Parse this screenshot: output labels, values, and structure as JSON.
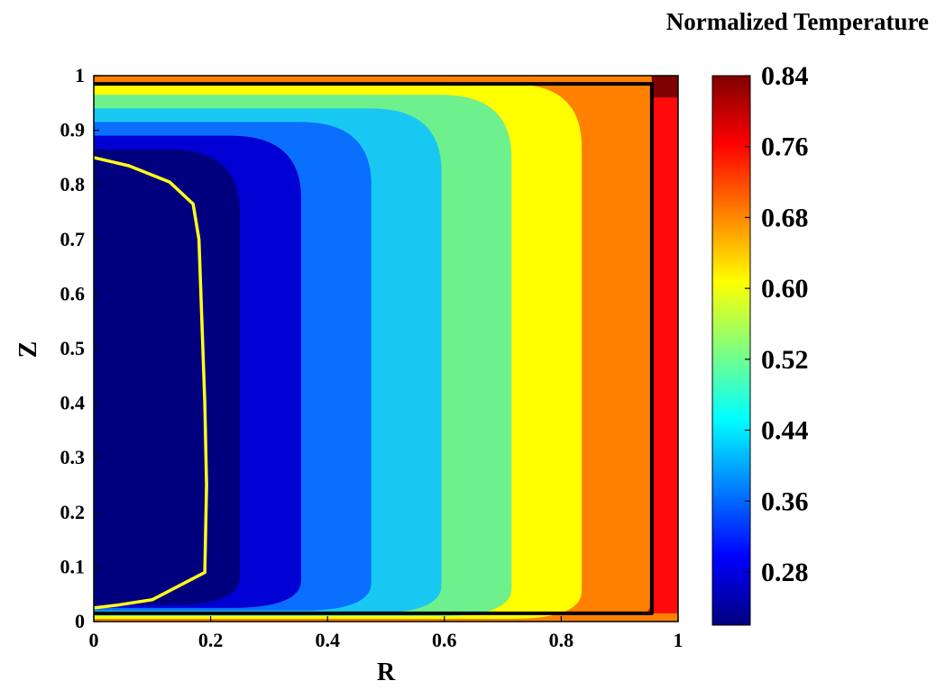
{
  "chart_data": {
    "type": "heatmap",
    "subtype": "filled-contour",
    "title": "",
    "xlabel": "R",
    "ylabel": "Z",
    "xlim": [
      0,
      1
    ],
    "ylim": [
      0,
      1
    ],
    "x_ticks": [
      "0",
      "0.2",
      "0.4",
      "0.6",
      "0.8",
      "1"
    ],
    "x_tick_values": [
      0,
      0.2,
      0.4,
      0.6,
      0.8,
      1
    ],
    "y_ticks": [
      "0",
      "0.1",
      "0.2",
      "0.3",
      "0.4",
      "0.5",
      "0.6",
      "0.7",
      "0.8",
      "0.9",
      "1"
    ],
    "y_tick_values": [
      0,
      0.1,
      0.2,
      0.3,
      0.4,
      0.5,
      0.6,
      0.7,
      0.8,
      0.9,
      1
    ],
    "grid": false,
    "colorbar": {
      "title": "Normalized Temperature",
      "min": 0.22,
      "max": 0.84,
      "tick_labels": [
        "0.84",
        "0.76",
        "0.68",
        "0.60",
        "0.52",
        "0.44",
        "0.36",
        "0.28"
      ],
      "tick_values": [
        0.84,
        0.76,
        0.68,
        0.6,
        0.52,
        0.44,
        0.36,
        0.28
      ],
      "colormap": [
        "#00007f",
        "#0000ff",
        "#0080ff",
        "#00ffff",
        "#80ff80",
        "#ffff00",
        "#ff8000",
        "#ff0000",
        "#7f0000"
      ]
    },
    "levels": [
      {
        "r_mid": 0.25,
        "z_low": 0.03,
        "z_high": 0.865,
        "color": "#00007f"
      },
      {
        "r_mid": 0.355,
        "z_low": 0.025,
        "z_high": 0.89,
        "color": "#0000d4"
      },
      {
        "r_mid": 0.475,
        "z_low": 0.02,
        "z_high": 0.915,
        "color": "#0a6eff"
      },
      {
        "r_mid": 0.595,
        "z_low": 0.015,
        "z_high": 0.94,
        "color": "#19c8f2"
      },
      {
        "r_mid": 0.715,
        "z_low": 0.01,
        "z_high": 0.965,
        "color": "#6ef08c"
      },
      {
        "r_mid": 0.835,
        "z_low": 0.005,
        "z_high": 0.985,
        "color": "#ffff00"
      },
      {
        "r_mid": 0.955,
        "z_low": -0.01,
        "z_high": 1.1,
        "color": "#ff8000"
      }
    ],
    "background_color": "#ff0a0a",
    "top_band_color": "#c00000",
    "bottom_band_color": "#ff8000",
    "corner_color": "#7f0000",
    "outlines": [
      {
        "name": "black-boundary",
        "color": "#000000",
        "points": [
          [
            0,
            0.985
          ],
          [
            0.955,
            0.985
          ],
          [
            0.955,
            0.015
          ],
          [
            0,
            0.015
          ]
        ]
      },
      {
        "name": "yellow-isotherm",
        "color": "#ffff1a",
        "points": [
          [
            0,
            0.85
          ],
          [
            0.06,
            0.835
          ],
          [
            0.13,
            0.805
          ],
          [
            0.17,
            0.765
          ],
          [
            0.18,
            0.7
          ],
          [
            0.185,
            0.55
          ],
          [
            0.19,
            0.4
          ],
          [
            0.193,
            0.25
          ],
          [
            0.19,
            0.09
          ],
          [
            0.1,
            0.04
          ],
          [
            0.04,
            0.03
          ],
          [
            0,
            0.025
          ]
        ]
      }
    ]
  }
}
